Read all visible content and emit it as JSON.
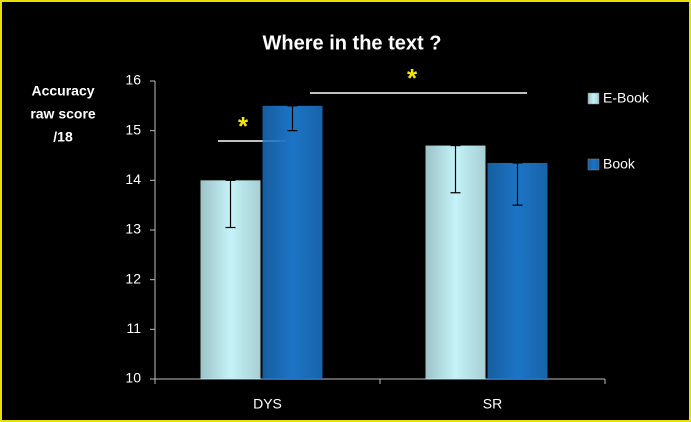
{
  "chart_data": {
    "type": "bar",
    "title": "Where in the text ?",
    "y_label": [
      "Accuracy",
      "raw score",
      "/18"
    ],
    "categories": [
      "DYS",
      "SR"
    ],
    "series": [
      {
        "name": "E-Book",
        "color": "#c4f3f8",
        "values": [
          14.0,
          14.7
        ],
        "errors": [
          0.95,
          0.95
        ]
      },
      {
        "name": "Book",
        "color": "#1c74c6",
        "values": [
          15.5,
          14.35
        ],
        "errors": [
          0.5,
          0.85
        ]
      }
    ],
    "ylim": [
      10,
      16
    ],
    "yticks": [
      10,
      11,
      12,
      13,
      14,
      15,
      16
    ],
    "grid": false,
    "legend": "right",
    "annotations": [
      "*",
      "*"
    ]
  }
}
